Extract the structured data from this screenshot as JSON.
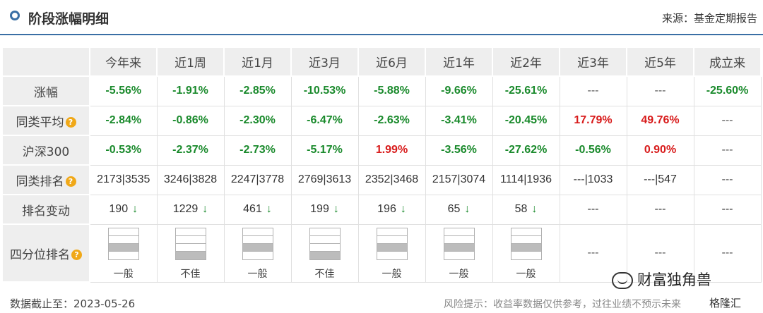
{
  "header": {
    "title": "阶段涨幅明细",
    "source": "来源：基金定期报告"
  },
  "table": {
    "columns": [
      "今年来",
      "近1周",
      "近1月",
      "近3月",
      "近6月",
      "近1年",
      "近2年",
      "近3年",
      "近5年",
      "成立来"
    ],
    "rows": {
      "gain": {
        "label": "涨幅",
        "cells": [
          {
            "text": "-5.56%",
            "tone": "green"
          },
          {
            "text": "-1.91%",
            "tone": "green"
          },
          {
            "text": "-2.85%",
            "tone": "green"
          },
          {
            "text": "-10.53%",
            "tone": "green"
          },
          {
            "text": "-5.88%",
            "tone": "green"
          },
          {
            "text": "-9.66%",
            "tone": "green"
          },
          {
            "text": "-25.61%",
            "tone": "green"
          },
          {
            "text": "---",
            "tone": "dash"
          },
          {
            "text": "---",
            "tone": "dash"
          },
          {
            "text": "-25.60%",
            "tone": "green"
          }
        ]
      },
      "peer_avg": {
        "label": "同类平均",
        "cells": [
          {
            "text": "-2.84%",
            "tone": "green"
          },
          {
            "text": "-0.86%",
            "tone": "green"
          },
          {
            "text": "-2.30%",
            "tone": "green"
          },
          {
            "text": "-6.47%",
            "tone": "green"
          },
          {
            "text": "-2.63%",
            "tone": "green"
          },
          {
            "text": "-3.41%",
            "tone": "green"
          },
          {
            "text": "-20.45%",
            "tone": "green"
          },
          {
            "text": "17.79%",
            "tone": "red"
          },
          {
            "text": "49.76%",
            "tone": "red"
          },
          {
            "text": "---",
            "tone": "dash"
          }
        ]
      },
      "hs300": {
        "label": "沪深300",
        "cells": [
          {
            "text": "-0.53%",
            "tone": "green"
          },
          {
            "text": "-2.37%",
            "tone": "green"
          },
          {
            "text": "-2.73%",
            "tone": "green"
          },
          {
            "text": "-5.17%",
            "tone": "green"
          },
          {
            "text": "1.99%",
            "tone": "red"
          },
          {
            "text": "-3.56%",
            "tone": "green"
          },
          {
            "text": "-27.62%",
            "tone": "green"
          },
          {
            "text": "-0.56%",
            "tone": "green"
          },
          {
            "text": "0.90%",
            "tone": "red"
          },
          {
            "text": "---",
            "tone": "dash"
          }
        ]
      },
      "peer_rank": {
        "label": "同类排名",
        "cells": [
          {
            "text": "2173|3535",
            "tone": "plain"
          },
          {
            "text": "3246|3828",
            "tone": "plain"
          },
          {
            "text": "2247|3778",
            "tone": "plain"
          },
          {
            "text": "2769|3613",
            "tone": "plain"
          },
          {
            "text": "2352|3468",
            "tone": "plain"
          },
          {
            "text": "2157|3074",
            "tone": "plain"
          },
          {
            "text": "1114|1936",
            "tone": "plain"
          },
          {
            "text": "---|1033",
            "tone": "plain"
          },
          {
            "text": "---|547",
            "tone": "plain"
          },
          {
            "text": "---",
            "tone": "dash"
          }
        ]
      },
      "rank_change": {
        "label": "排名变动",
        "arrow_glyph": "↓",
        "cells": [
          {
            "text": "190",
            "arrow": true
          },
          {
            "text": "1229",
            "arrow": true
          },
          {
            "text": "461",
            "arrow": true
          },
          {
            "text": "199",
            "arrow": true
          },
          {
            "text": "196",
            "arrow": true
          },
          {
            "text": "65",
            "arrow": true
          },
          {
            "text": "58",
            "arrow": true
          },
          {
            "text": "---",
            "arrow": false
          },
          {
            "text": "---",
            "arrow": false
          },
          {
            "text": "---",
            "arrow": false
          }
        ]
      },
      "quartile": {
        "label": "四分位排名",
        "cells": [
          {
            "quartile": 3,
            "text": "一般"
          },
          {
            "quartile": 4,
            "text": "不佳"
          },
          {
            "quartile": 3,
            "text": "一般"
          },
          {
            "quartile": 4,
            "text": "不佳"
          },
          {
            "quartile": 3,
            "text": "一般"
          },
          {
            "quartile": 3,
            "text": "一般"
          },
          {
            "quartile": 3,
            "text": "一般"
          },
          {
            "quartile": null,
            "text": "---"
          },
          {
            "quartile": null,
            "text": "---"
          },
          {
            "quartile": null,
            "text": "---"
          }
        ]
      }
    },
    "help_icon_glyph": "?"
  },
  "footer": {
    "date_label": "数据截止至：2023-05-26",
    "risk_notice": "风险提示：收益率数据仅供参考，过往业绩不预示未来"
  },
  "watermark": {
    "text": "财富独角兽",
    "brand": "格隆汇"
  },
  "colors": {
    "accent": "#3a6fa5",
    "positive": "#d81b1b",
    "negative": "#1a8a2c",
    "help_icon": "#f0a818"
  }
}
